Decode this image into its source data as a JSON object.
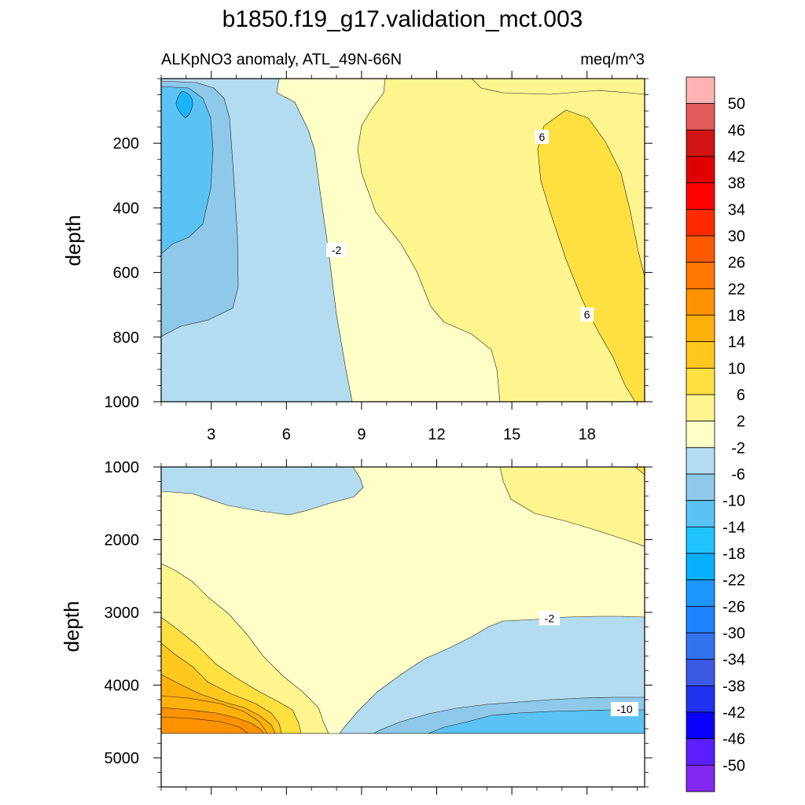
{
  "figure": {
    "title": "b1850.f19_g17.validation_mct.003",
    "subtitle_left": "ALKpNO3 anomaly, ATL_49N-66N",
    "subtitle_right": "meq/m^3"
  },
  "chart_data": [
    {
      "type": "heatmap",
      "panel": "upper",
      "ylabel": "depth",
      "xlabel": "",
      "y_inverted": true,
      "xlim": [
        1,
        20.3
      ],
      "ylim": [
        0,
        1000
      ],
      "x_ticks": [
        3,
        6,
        9,
        12,
        15,
        18
      ],
      "y_ticks": [
        200,
        400,
        600,
        800,
        1000
      ],
      "contour_labels": [
        {
          "text": "-2",
          "x": 8.0,
          "y": 530
        },
        {
          "text": "6",
          "x": 16.2,
          "y": 180
        },
        {
          "text": "6",
          "x": 18.0,
          "y": 730
        }
      ],
      "regions": [
        {
          "level": -2,
          "color": "#ffffc8",
          "desc": "background"
        },
        {
          "level": -6,
          "color": "#b4dcf0",
          "x_extent": [
            1,
            9
          ]
        },
        {
          "level": -10,
          "color": "#8ec9ea",
          "x_extent": [
            1,
            4.6
          ]
        },
        {
          "level": -14,
          "color": "#5bc3f3",
          "x_extent": [
            1,
            3.5
          ]
        },
        {
          "level": -18,
          "color": "#1ab4ff",
          "x_extent": [
            2.5,
            3
          ]
        },
        {
          "level": 2,
          "color": "#fff58f",
          "x_extent": [
            10,
            20.3
          ]
        },
        {
          "level": 6,
          "color": "#ffe040",
          "x_extent": [
            16,
            20.3
          ]
        }
      ]
    },
    {
      "type": "heatmap",
      "panel": "lower",
      "ylabel": "depth",
      "xlabel": "",
      "y_inverted": true,
      "xlim": [
        1,
        20.3
      ],
      "ylim": [
        1000,
        5400
      ],
      "x_ticks": [
        3,
        6,
        9,
        12,
        15,
        18
      ],
      "y_ticks": [
        1000,
        2000,
        3000,
        4000,
        5000
      ],
      "data_floor_depth": 4630,
      "contour_labels": [
        {
          "text": "-2",
          "x": 16.5,
          "y": 3080
        },
        {
          "text": "-10",
          "x": 19.5,
          "y": 4330
        }
      ],
      "regions": [
        {
          "level": -2,
          "color": "#ffffc8",
          "desc": "background"
        },
        {
          "level": -6,
          "color": "#b4dcf0"
        },
        {
          "level": -10,
          "color": "#8ec9ea"
        },
        {
          "level": -14,
          "color": "#5bc3f3"
        },
        {
          "level": 2,
          "color": "#fff58f"
        },
        {
          "level": 6,
          "color": "#ffe040"
        },
        {
          "level": 10,
          "color": "#ffc81e"
        },
        {
          "level": 14,
          "color": "#ffb10b"
        },
        {
          "level": 18,
          "color": "#ff9200"
        }
      ]
    }
  ],
  "colorbar": {
    "labels": [
      "50",
      "46",
      "42",
      "38",
      "34",
      "30",
      "26",
      "22",
      "18",
      "14",
      "10",
      "6",
      "2",
      "-2",
      "-6",
      "-10",
      "-14",
      "-18",
      "-22",
      "-26",
      "-30",
      "-34",
      "-38",
      "-42",
      "-46",
      "-50"
    ],
    "colors": [
      "#ffb4b4",
      "#e55c5c",
      "#d21414",
      "#e10000",
      "#ff0000",
      "#ff2a00",
      "#ff5a00",
      "#ff7800",
      "#ff9200",
      "#ffb10b",
      "#ffc81e",
      "#ffe040",
      "#fff58f",
      "#ffffc8",
      "#b4dcf0",
      "#8ec9ea",
      "#5bc3f3",
      "#1ec3ff",
      "#05b1ff",
      "#1e96ff",
      "#1e82ff",
      "#3272ef",
      "#3c5ae6",
      "#1e32f0",
      "#0a00ff",
      "#5a1eff",
      "#8228f0"
    ]
  }
}
